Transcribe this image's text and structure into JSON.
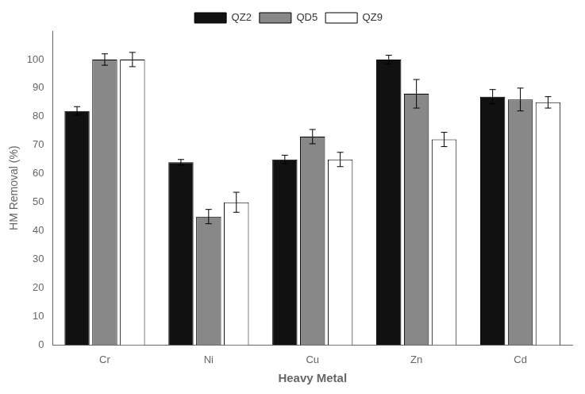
{
  "chart_data": {
    "type": "bar",
    "xlabel": "Heavy Metal",
    "ylabel": "HM Removal (%)",
    "categories": [
      "Cr",
      "Ni",
      "Cu",
      "Zn",
      "Cd"
    ],
    "series": [
      {
        "name": "QZ2",
        "color": "#111111",
        "values": [
          82,
          64,
          65,
          100,
          87
        ],
        "errors": [
          1.5,
          1.0,
          1.5,
          1.5,
          2.5
        ]
      },
      {
        "name": "QD5",
        "color": "#888888",
        "values": [
          100,
          45,
          73,
          88,
          86
        ],
        "errors": [
          2.0,
          2.5,
          2.5,
          5.0,
          4.0
        ]
      },
      {
        "name": "QZ9",
        "color": "#ffffff",
        "values": [
          100,
          50,
          65,
          72,
          85
        ],
        "errors": [
          2.5,
          3.5,
          2.5,
          2.5,
          2.0
        ]
      }
    ],
    "ylim": [
      0,
      110
    ],
    "yticks": [
      0,
      10,
      20,
      30,
      40,
      50,
      60,
      70,
      80,
      90,
      100
    ],
    "grid": false,
    "legend": "top"
  }
}
